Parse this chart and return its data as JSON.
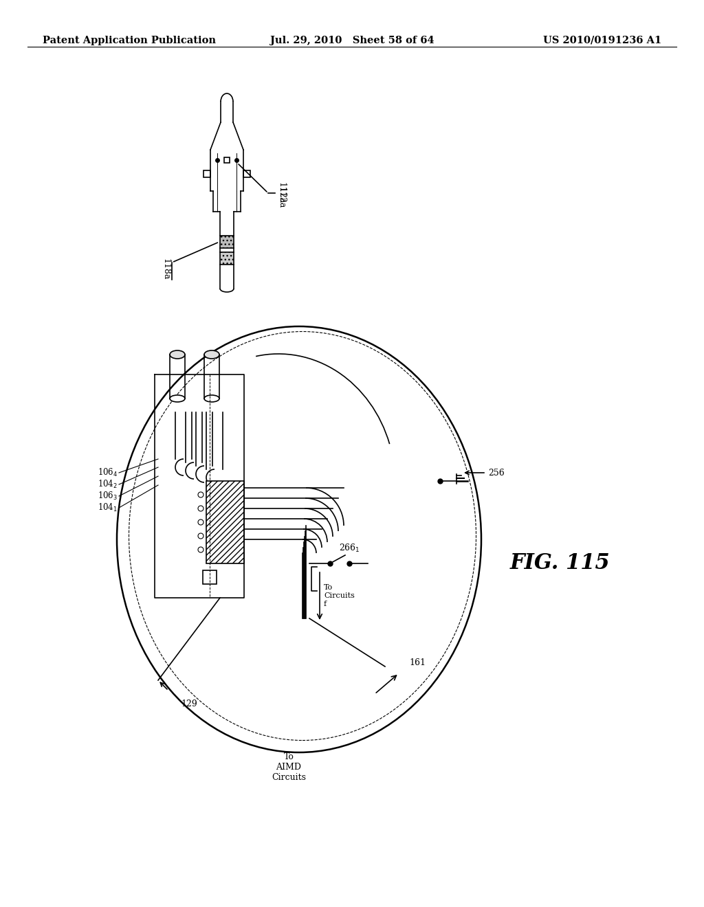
{
  "bg_color": "#ffffff",
  "header_left": "Patent Application Publication",
  "header_center": "Jul. 29, 2010   Sheet 58 of 64",
  "header_right": "US 2010/0191236 A1",
  "fig_label": "FIG. 115",
  "header_fontsize": 10.5
}
